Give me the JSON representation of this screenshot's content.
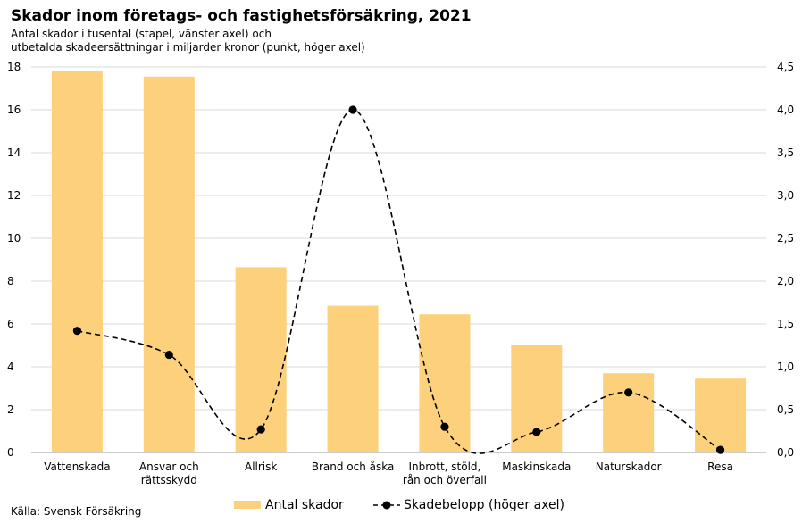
{
  "chart_data": {
    "type": "bar+line",
    "title": "Skador inom företags- och fastighetsförsäkring, 2021",
    "subtitle_lines": [
      "Antal skador i tusental (stapel, vänster axel) och",
      "utbetalda skadeersättningar i miljarder kronor (punkt, höger axel)"
    ],
    "categories": [
      [
        "Vattenskada"
      ],
      [
        "Ansvar och",
        "rättsskydd"
      ],
      [
        "Allrisk"
      ],
      [
        "Brand och åska"
      ],
      [
        "Inbrott, stöld,",
        "rån och överfall"
      ],
      [
        "Maskinskada"
      ],
      [
        "Naturskador"
      ],
      [
        "Resa"
      ]
    ],
    "series": [
      {
        "name": "Antal skador",
        "kind": "bar",
        "axis": "left",
        "values": [
          17.8,
          17.55,
          8.65,
          6.85,
          6.45,
          5.0,
          3.7,
          3.45
        ],
        "color": "#FDD17B"
      },
      {
        "name": "Skadebelopp (höger axel)",
        "kind": "line",
        "axis": "right",
        "values": [
          1.42,
          1.14,
          0.27,
          4.0,
          0.3,
          0.24,
          0.7,
          0.03
        ],
        "color": "#000000",
        "line_style": "dashed",
        "marker": "circle"
      }
    ],
    "left_axis": {
      "min": 0,
      "max": 18,
      "ticks": [
        "0",
        "2",
        "4",
        "6",
        "8",
        "10",
        "12",
        "14",
        "16",
        "18"
      ]
    },
    "right_axis": {
      "min": 0,
      "max": 4.5,
      "ticks": [
        "0,0",
        "0,5",
        "1,0",
        "1,5",
        "2,0",
        "2,5",
        "3,0",
        "3,5",
        "4,0",
        "4,5"
      ]
    },
    "grid": true,
    "legend_position": "bottom",
    "source": "Källa: Svensk Försäkring"
  }
}
